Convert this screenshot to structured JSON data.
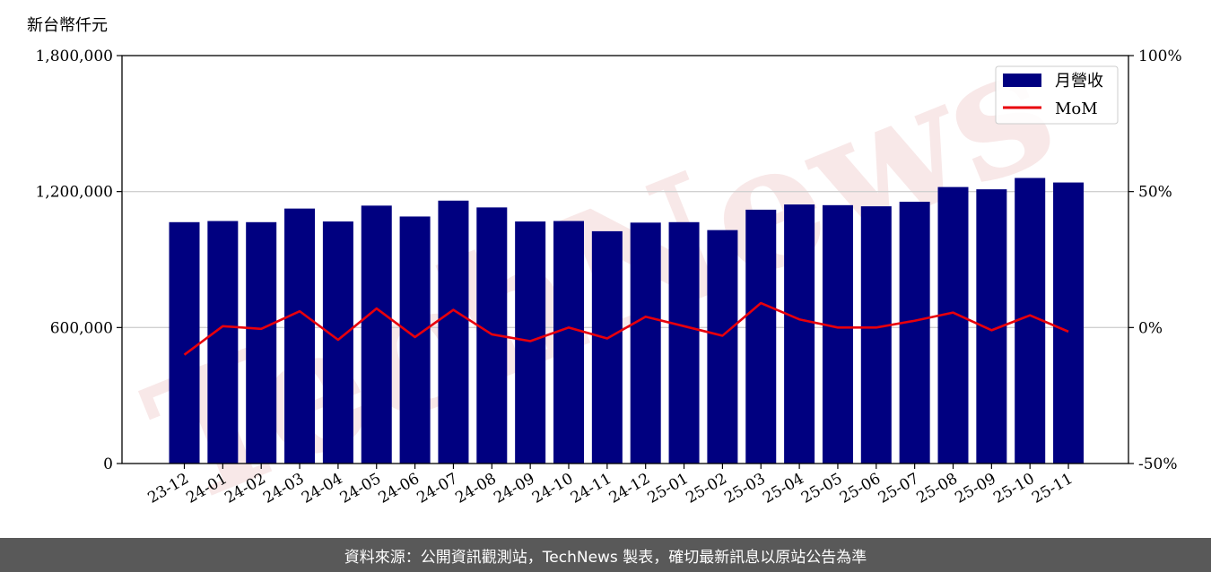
{
  "chart_data": {
    "type": "bar",
    "y_unit_label": "新台幣仟元",
    "categories": [
      "23-12",
      "24-01",
      "24-02",
      "24-03",
      "24-04",
      "24-05",
      "24-06",
      "24-07",
      "24-08",
      "24-09",
      "24-10",
      "24-11",
      "24-12",
      "25-01",
      "25-02",
      "25-03",
      "25-04",
      "25-05",
      "25-06",
      "25-07",
      "25-08",
      "25-09",
      "25-10",
      "25-11"
    ],
    "series": [
      {
        "name": "月營收",
        "axis": "left",
        "color": "#000080",
        "values": [
          1065000,
          1070000,
          1065000,
          1125000,
          1068000,
          1138000,
          1090000,
          1160000,
          1130000,
          1068000,
          1070000,
          1025000,
          1063000,
          1065000,
          1030000,
          1120000,
          1143000,
          1140000,
          1135000,
          1155000,
          1220000,
          1210000,
          1260000,
          1240000
        ]
      },
      {
        "name": "MoM",
        "axis": "right",
        "color": "#e8000b",
        "values": [
          -10,
          0.5,
          -0.5,
          6,
          -4.5,
          7,
          -3.5,
          6.5,
          -2.5,
          -5,
          0,
          -4,
          4,
          0.5,
          -3,
          9,
          3,
          0,
          0,
          2.5,
          5.5,
          -1,
          4.5,
          -1.5
        ]
      }
    ],
    "y_left": {
      "lim": [
        0,
        1800000
      ],
      "ticks": [
        "0",
        "600,000",
        "1,200,000",
        "1,800,000"
      ],
      "tick_values": [
        0,
        600000,
        1200000,
        1800000
      ]
    },
    "y_right": {
      "lim": [
        -50,
        100
      ],
      "ticks": [
        "-50%",
        "0%",
        "50%",
        "100%"
      ],
      "tick_values": [
        -50,
        0,
        50,
        100
      ]
    },
    "grid": "horizontal",
    "legend": "top-right",
    "watermark": "TechNews"
  },
  "footer": {
    "source": "資料來源：公開資訊觀測站，TechNews 製表，確切最新訊息以原站公告為準"
  }
}
